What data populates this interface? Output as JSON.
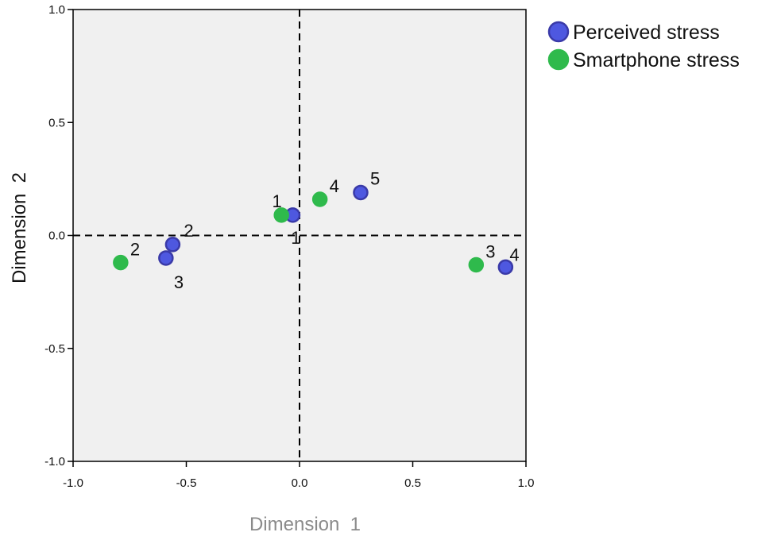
{
  "chart_data": {
    "type": "scatter",
    "xlabel": "Dimension  1",
    "ylabel": "Dimension  2",
    "xlim": [
      -1.0,
      1.0
    ],
    "ylim": [
      -1.0,
      1.0
    ],
    "x_ticks": [
      "-1.0",
      "-0.5",
      "0.0",
      "0.5",
      "1.0"
    ],
    "y_ticks": [
      "1.0",
      "0.5",
      "0.0",
      "-0.5",
      "-1.0"
    ],
    "reference_lines": {
      "x": 0.0,
      "y": 0.0,
      "style": "dashed"
    },
    "plot_background": "#f0f0f0",
    "grid": false,
    "legend_position": "top-right, outside plot",
    "series": [
      {
        "name": "Perceived stress",
        "color": "#4e58e0",
        "edge_color": "#3a3aa8",
        "points": [
          {
            "label": "1",
            "x": -0.03,
            "y": 0.09
          },
          {
            "label": "2",
            "x": -0.56,
            "y": -0.04
          },
          {
            "label": "3",
            "x": -0.59,
            "y": -0.1
          },
          {
            "label": "4",
            "x": 0.91,
            "y": -0.14
          },
          {
            "label": "5",
            "x": 0.27,
            "y": 0.19
          }
        ]
      },
      {
        "name": "Smartphone stress",
        "color": "#2fba4c",
        "edge_color": "#2fba4c",
        "points": [
          {
            "label": "1",
            "x": -0.08,
            "y": 0.09
          },
          {
            "label": "2",
            "x": -0.79,
            "y": -0.12
          },
          {
            "label": "3",
            "x": 0.78,
            "y": -0.13
          },
          {
            "label": "4",
            "x": 0.09,
            "y": 0.16
          }
        ]
      }
    ]
  }
}
